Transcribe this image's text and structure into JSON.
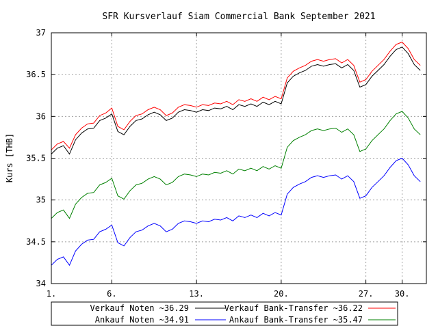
{
  "chart_data": {
    "type": "line",
    "title": "SFR Kursverlauf Siam Commercial Bank September 2021",
    "ylabel": "Kurs [THB]",
    "xlabel": "",
    "x_range": [
      1,
      32
    ],
    "ylim": [
      34,
      37
    ],
    "y_ticks": [
      "34",
      "34.5",
      "35",
      "35.5",
      "36",
      "36.5",
      "37"
    ],
    "x_ticks": [
      {
        "value": 1,
        "label": "1."
      },
      {
        "value": 6,
        "label": "6."
      },
      {
        "value": 13,
        "label": "13."
      },
      {
        "value": 20,
        "label": "20."
      },
      {
        "value": 27,
        "label": "27."
      },
      {
        "value": 30,
        "label": "30."
      }
    ],
    "grid": true,
    "legend_position": "bottom",
    "series": [
      {
        "name": "Verkauf Noten ~36.29",
        "color": "#000000",
        "x": [
          1,
          1.5,
          2,
          2.5,
          3,
          3.5,
          4,
          4.5,
          5,
          5.5,
          6,
          6.5,
          7,
          7.5,
          8,
          8.5,
          9,
          9.5,
          10,
          10.5,
          11,
          11.5,
          12,
          12.5,
          13,
          13.5,
          14,
          14.5,
          15,
          15.5,
          16,
          16.5,
          17,
          17.5,
          18,
          18.5,
          19,
          19.5,
          20,
          20.5,
          21,
          21.5,
          22,
          22.5,
          23,
          23.5,
          24,
          24.5,
          25,
          25.5,
          26,
          26.5,
          27,
          27.5,
          28,
          28.5,
          29,
          29.5,
          30,
          30.5,
          31,
          31.5
        ],
        "values": [
          35.55,
          35.62,
          35.65,
          35.55,
          35.72,
          35.8,
          35.85,
          35.86,
          35.95,
          35.98,
          36.03,
          35.82,
          35.78,
          35.88,
          35.95,
          35.97,
          36.02,
          36.05,
          36.02,
          35.95,
          35.98,
          36.05,
          36.08,
          36.07,
          36.05,
          36.08,
          36.07,
          36.1,
          36.09,
          36.12,
          36.08,
          36.14,
          36.12,
          36.15,
          36.12,
          36.17,
          36.14,
          36.18,
          36.15,
          36.4,
          36.48,
          36.52,
          36.55,
          36.6,
          36.62,
          36.6,
          36.62,
          36.63,
          36.58,
          36.62,
          36.55,
          36.35,
          36.38,
          36.48,
          36.55,
          36.62,
          36.72,
          36.8,
          36.83,
          36.75,
          36.62,
          36.55
        ]
      },
      {
        "name": "Verkauf Bank-Transfer ~36.22",
        "color": "#ff0000",
        "x": [
          1,
          1.5,
          2,
          2.5,
          3,
          3.5,
          4,
          4.5,
          5,
          5.5,
          6,
          6.5,
          7,
          7.5,
          8,
          8.5,
          9,
          9.5,
          10,
          10.5,
          11,
          11.5,
          12,
          12.5,
          13,
          13.5,
          14,
          14.5,
          15,
          15.5,
          16,
          16.5,
          17,
          17.5,
          18,
          18.5,
          19,
          19.5,
          20,
          20.5,
          21,
          21.5,
          22,
          22.5,
          23,
          23.5,
          24,
          24.5,
          25,
          25.5,
          26,
          26.5,
          27,
          27.5,
          28,
          28.5,
          29,
          29.5,
          30,
          30.5,
          31,
          31.5
        ],
        "values": [
          35.6,
          35.67,
          35.7,
          35.62,
          35.78,
          35.86,
          35.91,
          35.92,
          36.01,
          36.04,
          36.1,
          35.88,
          35.84,
          35.94,
          36.01,
          36.03,
          36.08,
          36.11,
          36.08,
          36.01,
          36.04,
          36.11,
          36.14,
          36.13,
          36.11,
          36.14,
          36.13,
          36.16,
          36.15,
          36.18,
          36.14,
          36.2,
          36.18,
          36.21,
          36.18,
          36.23,
          36.2,
          36.24,
          36.21,
          36.46,
          36.54,
          36.58,
          36.61,
          36.66,
          36.68,
          36.66,
          36.68,
          36.69,
          36.64,
          36.68,
          36.61,
          36.41,
          36.44,
          36.54,
          36.61,
          36.68,
          36.78,
          36.86,
          36.89,
          36.81,
          36.68,
          36.61
        ]
      },
      {
        "name": "Ankauf Noten ~34.91",
        "color": "#0000ff",
        "x": [
          1,
          1.5,
          2,
          2.5,
          3,
          3.5,
          4,
          4.5,
          5,
          5.5,
          6,
          6.5,
          7,
          7.5,
          8,
          8.5,
          9,
          9.5,
          10,
          10.5,
          11,
          11.5,
          12,
          12.5,
          13,
          13.5,
          14,
          14.5,
          15,
          15.5,
          16,
          16.5,
          17,
          17.5,
          18,
          18.5,
          19,
          19.5,
          20,
          20.5,
          21,
          21.5,
          22,
          22.5,
          23,
          23.5,
          24,
          24.5,
          25,
          25.5,
          26,
          26.5,
          27,
          27.5,
          28,
          28.5,
          29,
          29.5,
          30,
          30.5,
          31,
          31.5
        ],
        "values": [
          34.22,
          34.29,
          34.32,
          34.22,
          34.39,
          34.47,
          34.52,
          34.53,
          34.62,
          34.65,
          34.7,
          34.49,
          34.45,
          34.55,
          34.62,
          34.64,
          34.69,
          34.72,
          34.69,
          34.62,
          34.65,
          34.72,
          34.75,
          34.74,
          34.72,
          34.75,
          34.74,
          34.77,
          34.76,
          34.79,
          34.75,
          34.81,
          34.79,
          34.82,
          34.79,
          34.84,
          34.81,
          34.85,
          34.82,
          35.07,
          35.15,
          35.19,
          35.22,
          35.27,
          35.29,
          35.27,
          35.29,
          35.3,
          35.25,
          35.29,
          35.22,
          35.02,
          35.05,
          35.15,
          35.22,
          35.29,
          35.39,
          35.47,
          35.5,
          35.42,
          35.29,
          35.22
        ]
      },
      {
        "name": "Ankauf Bank-Transfer ~35.47",
        "color": "#008000",
        "x": [
          1,
          1.5,
          2,
          2.5,
          3,
          3.5,
          4,
          4.5,
          5,
          5.5,
          6,
          6.5,
          7,
          7.5,
          8,
          8.5,
          9,
          9.5,
          10,
          10.5,
          11,
          11.5,
          12,
          12.5,
          13,
          13.5,
          14,
          14.5,
          15,
          15.5,
          16,
          16.5,
          17,
          17.5,
          18,
          18.5,
          19,
          19.5,
          20,
          20.5,
          21,
          21.5,
          22,
          22.5,
          23,
          23.5,
          24,
          24.5,
          25,
          25.5,
          26,
          26.5,
          27,
          27.5,
          28,
          28.5,
          29,
          29.5,
          30,
          30.5,
          31,
          31.5
        ],
        "values": [
          34.78,
          34.85,
          34.88,
          34.78,
          34.95,
          35.03,
          35.08,
          35.09,
          35.18,
          35.21,
          35.26,
          35.05,
          35.01,
          35.11,
          35.18,
          35.2,
          35.25,
          35.28,
          35.25,
          35.18,
          35.21,
          35.28,
          35.31,
          35.3,
          35.28,
          35.31,
          35.3,
          35.33,
          35.32,
          35.35,
          35.31,
          35.37,
          35.35,
          35.38,
          35.35,
          35.4,
          35.37,
          35.41,
          35.38,
          35.63,
          35.71,
          35.75,
          35.78,
          35.83,
          35.85,
          35.83,
          35.85,
          35.86,
          35.81,
          35.85,
          35.78,
          35.58,
          35.61,
          35.71,
          35.78,
          35.85,
          35.95,
          36.03,
          36.06,
          35.98,
          35.85,
          35.78
        ]
      }
    ]
  }
}
